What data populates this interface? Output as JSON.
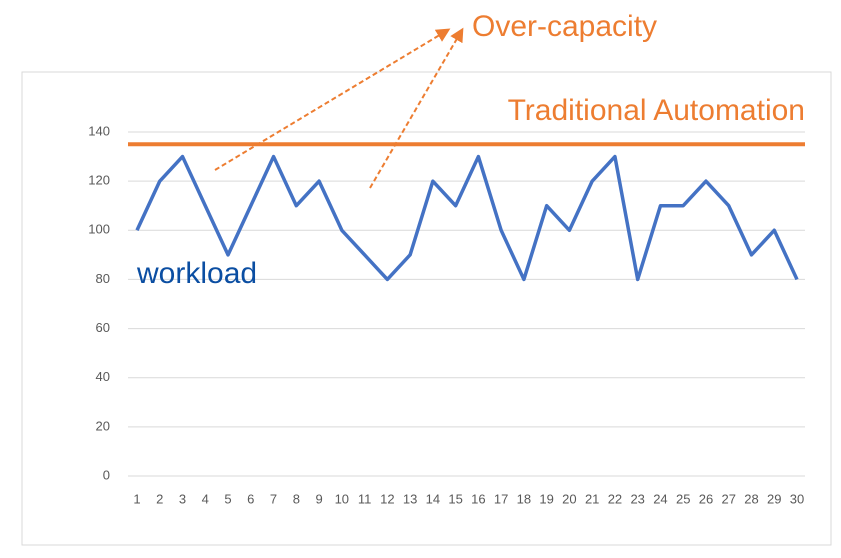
{
  "chart_data": {
    "type": "line",
    "categories": [
      "1",
      "2",
      "3",
      "4",
      "5",
      "6",
      "7",
      "8",
      "9",
      "10",
      "11",
      "12",
      "13",
      "14",
      "15",
      "16",
      "17",
      "18",
      "19",
      "20",
      "21",
      "22",
      "23",
      "24",
      "25",
      "26",
      "27",
      "28",
      "29",
      "30"
    ],
    "series": [
      {
        "name": "workload",
        "color": "#4472c4",
        "values": [
          100,
          120,
          130,
          110,
          90,
          110,
          130,
          110,
          120,
          100,
          90,
          80,
          90,
          120,
          110,
          130,
          100,
          80,
          110,
          100,
          120,
          130,
          80,
          110,
          110,
          120,
          110,
          90,
          100,
          80
        ]
      }
    ],
    "capacity": {
      "label": "Traditional Automation",
      "value": 135,
      "color": "#ed7d31"
    },
    "annotation": "Over-capacity",
    "ylim": [
      0,
      140
    ],
    "yticks": [
      0,
      20,
      40,
      60,
      80,
      100,
      120,
      140
    ],
    "grid": true
  }
}
